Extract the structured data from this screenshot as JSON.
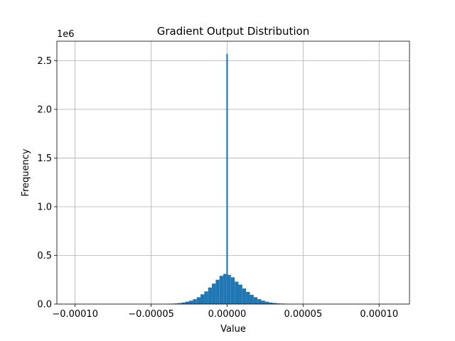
{
  "chart_data": {
    "type": "bar",
    "title": "Gradient Output Distribution",
    "xlabel": "Value",
    "ylabel": "Frequency",
    "y_offset_label": "1e6",
    "xlim": [
      -0.000112,
      0.00012
    ],
    "ylim": [
      0,
      2.7
    ],
    "y_unit_scale": 1000000,
    "xticks": [
      -0.0001,
      -5e-05,
      0,
      5e-05,
      0.0001
    ],
    "xtick_labels": [
      "−0.00010",
      "−0.00005",
      "0.00000",
      "0.00005",
      "0.00010"
    ],
    "yticks": [
      0,
      0.5,
      1.0,
      1.5,
      2.0,
      2.5
    ],
    "ytick_labels": [
      "0.0",
      "0.5",
      "1.0",
      "1.5",
      "2.0",
      "2.5"
    ],
    "grid": true,
    "bar_color": "#1f77b4",
    "bins": [
      {
        "x0": -4e-05,
        "x1": -3.75e-05,
        "value": 0.002
      },
      {
        "x0": -3.75e-05,
        "x1": -3.5e-05,
        "value": 0.004
      },
      {
        "x0": -3.5e-05,
        "x1": -3.25e-05,
        "value": 0.006
      },
      {
        "x0": -3.25e-05,
        "x1": -3e-05,
        "value": 0.01
      },
      {
        "x0": -3e-05,
        "x1": -2.75e-05,
        "value": 0.016
      },
      {
        "x0": -2.75e-05,
        "x1": -2.5e-05,
        "value": 0.025
      },
      {
        "x0": -2.5e-05,
        "x1": -2.25e-05,
        "value": 0.035
      },
      {
        "x0": -2.25e-05,
        "x1": -2e-05,
        "value": 0.05
      },
      {
        "x0": -2e-05,
        "x1": -1.75e-05,
        "value": 0.07
      },
      {
        "x0": -1.75e-05,
        "x1": -1.5e-05,
        "value": 0.1
      },
      {
        "x0": -1.5e-05,
        "x1": -1.25e-05,
        "value": 0.13
      },
      {
        "x0": -1.25e-05,
        "x1": -1e-05,
        "value": 0.17
      },
      {
        "x0": -1e-05,
        "x1": -7.5e-06,
        "value": 0.21
      },
      {
        "x0": -7.5e-06,
        "x1": -5e-06,
        "value": 0.25
      },
      {
        "x0": -5e-06,
        "x1": -2.5e-06,
        "value": 0.29
      },
      {
        "x0": -2.5e-06,
        "x1": -5e-07,
        "value": 0.31
      },
      {
        "x0": -5e-07,
        "x1": 5e-07,
        "value": 2.57
      },
      {
        "x0": 5e-07,
        "x1": 2.5e-06,
        "value": 0.3
      },
      {
        "x0": 2.5e-06,
        "x1": 5e-06,
        "value": 0.275
      },
      {
        "x0": 5e-06,
        "x1": 7.5e-06,
        "value": 0.23
      },
      {
        "x0": 7.5e-06,
        "x1": 1e-05,
        "value": 0.2
      },
      {
        "x0": 1e-05,
        "x1": 1.25e-05,
        "value": 0.16
      },
      {
        "x0": 1.25e-05,
        "x1": 1.5e-05,
        "value": 0.125
      },
      {
        "x0": 1.5e-05,
        "x1": 1.75e-05,
        "value": 0.095
      },
      {
        "x0": 1.75e-05,
        "x1": 2e-05,
        "value": 0.07
      },
      {
        "x0": 2e-05,
        "x1": 2.25e-05,
        "value": 0.05
      },
      {
        "x0": 2.25e-05,
        "x1": 2.5e-05,
        "value": 0.035
      },
      {
        "x0": 2.5e-05,
        "x1": 2.75e-05,
        "value": 0.024
      },
      {
        "x0": 2.75e-05,
        "x1": 3e-05,
        "value": 0.016
      },
      {
        "x0": 3e-05,
        "x1": 3.25e-05,
        "value": 0.011
      },
      {
        "x0": 3.25e-05,
        "x1": 3.5e-05,
        "value": 0.007
      },
      {
        "x0": 3.5e-05,
        "x1": 3.75e-05,
        "value": 0.005
      },
      {
        "x0": 3.75e-05,
        "x1": 4e-05,
        "value": 0.003
      },
      {
        "x0": 4e-05,
        "x1": 4.25e-05,
        "value": 0.002
      }
    ]
  }
}
